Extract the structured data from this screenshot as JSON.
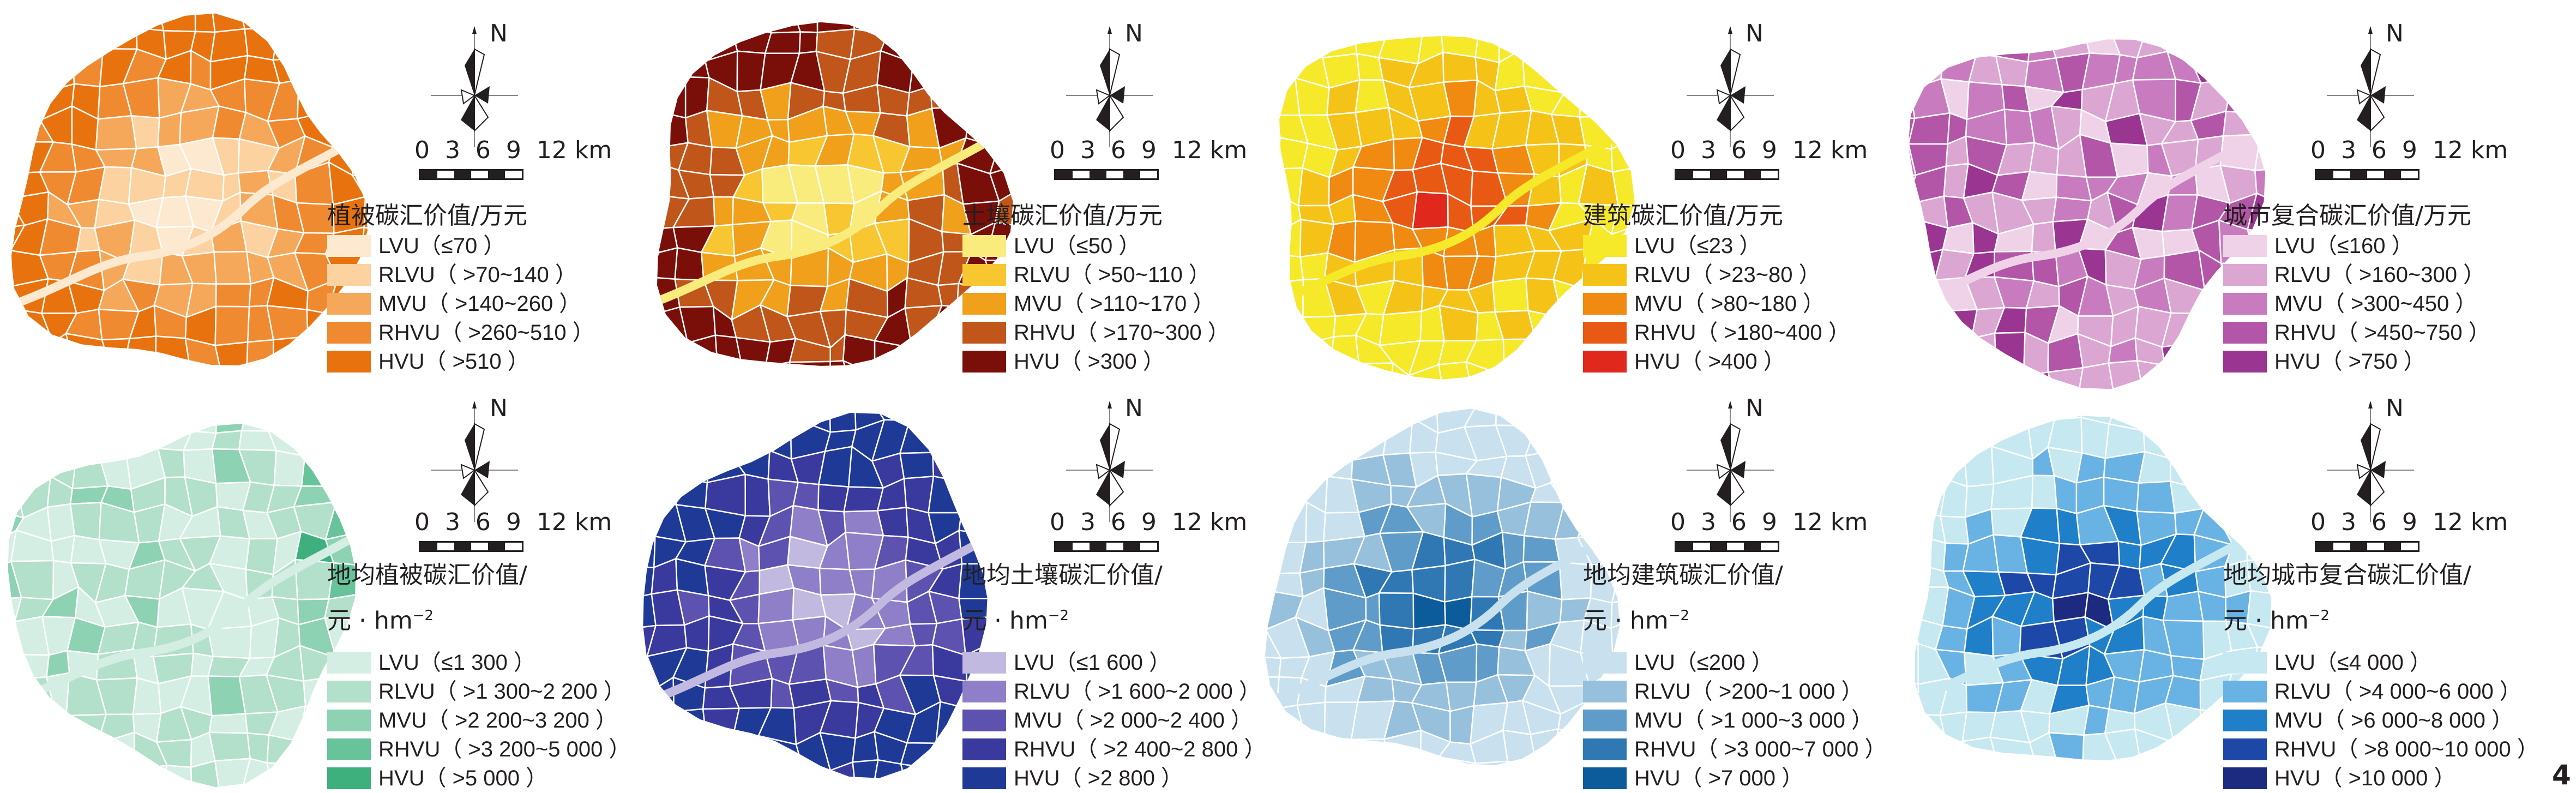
{
  "compass_label": "N",
  "scale_labels": "0  3  6  9  12 km",
  "figure_number": "4",
  "panels": [
    {
      "title": "植被碳汇价值/万元",
      "title2": "",
      "center": "low",
      "colors": [
        "#fde9cf",
        "#fbd2a0",
        "#f5a85a",
        "#f08a30",
        "#e8730e"
      ],
      "items": [
        "LVU（≤70 ）",
        "RLVU（ >70~140 ）",
        "MVU（ >140~260 ）",
        "RHVU（ >260~510 ）",
        "HVU（ >510 ）"
      ]
    },
    {
      "title": "土壤碳汇价值/万元",
      "title2": "",
      "center": "low",
      "colors": [
        "#f9ec7c",
        "#f7c630",
        "#f0a01a",
        "#c0561a",
        "#7a0f0a"
      ],
      "items": [
        "LVU（≤50 ）",
        "RLVU（ >50~110 ）",
        "MVU（ >110~170 ）",
        "RHVU（ >170~300 ）",
        "HVU（ >300 ）"
      ]
    },
    {
      "title": "建筑碳汇价值/万元",
      "title2": "",
      "center": "high",
      "colors": [
        "#f5e92a",
        "#f5c318",
        "#f08a10",
        "#e85a14",
        "#e0281c"
      ],
      "items": [
        "LVU（≤23 ）",
        "RLVU（ >23~80 ）",
        "MVU（ >80~180 ）",
        "RHVU（ >180~400 ）",
        "HVU（ >400 ）"
      ]
    },
    {
      "title": "城市复合碳汇价值/万元",
      "title2": "",
      "center": "mixed",
      "colors": [
        "#efd2e8",
        "#dca6d3",
        "#c87cbf",
        "#b356a8",
        "#9a3592"
      ],
      "items": [
        "LVU（≤160 ）",
        "RLVU（ >160~300 ）",
        "MVU（ >300~450 ）",
        "RHVU（ >450~750 ）",
        "HVU（ >750 ）"
      ]
    },
    {
      "title": "地均植被碳汇价值/",
      "title2": "元 · hm",
      "center": "flat",
      "colors": [
        "#d4eee3",
        "#b2e0cb",
        "#8dd2b3",
        "#66c39a",
        "#3db07d"
      ],
      "items": [
        "LVU（≤1 300 ）",
        "RLVU（ >1 300~2 200 ）",
        "MVU（ >2 200~3 200 ）",
        "RHVU（ >3 200~5 000 ）",
        "HVU（ >5 000 ）"
      ]
    },
    {
      "title": "地均土壤碳汇价值/",
      "title2": "元 · hm",
      "center": "low",
      "colors": [
        "#c2b9e0",
        "#8e7fc8",
        "#5e52b0",
        "#3a3a9e",
        "#1f3a96"
      ],
      "items": [
        "LVU（≤1 600 ）",
        "RLVU（ >1 600~2 000 ）",
        "MVU（ >2 000~2 400 ）",
        "RHVU（ >2 400~2 800 ）",
        "HVU（ >2 800 ）"
      ]
    },
    {
      "title": "地均建筑碳汇价值/",
      "title2": "元 · hm",
      "center": "high",
      "colors": [
        "#c9e1ee",
        "#97c0dd",
        "#5f9cc9",
        "#2f78b4",
        "#0c5b9a"
      ],
      "items": [
        "LVU（≤200 ）",
        "RLVU（ >200~1 000 ）",
        "MVU（ >1 000~3 000 ）",
        "RHVU（ >3 000~7 000 ）",
        "HVU（ >7 000 ）"
      ]
    },
    {
      "title": "地均城市复合碳汇价值/",
      "title2": "元 · hm",
      "center": "high",
      "colors": [
        "#c6e8f0",
        "#69b2e4",
        "#1f7fc8",
        "#1e48a8",
        "#1c2a80"
      ],
      "items": [
        "LVU（≤4 000 ）",
        "RLVU（ >4 000~6 000 ）",
        "MVU（ >6 000~8 000 ）",
        "RHVU（ >8 000~10 000 ）",
        "HVU（ >10 000 ）"
      ]
    }
  ],
  "unit_superscript": "−2"
}
